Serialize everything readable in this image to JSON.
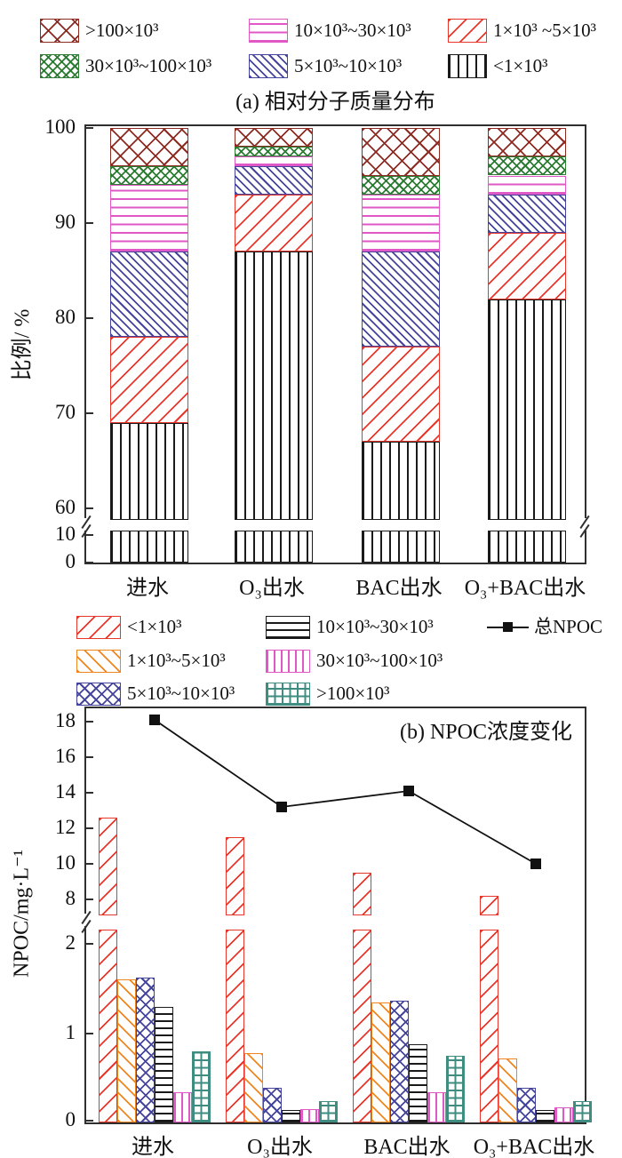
{
  "chart_data": [
    {
      "panel": "a",
      "type": "bar",
      "stacked": true,
      "title": "(a) 相对分子质量分布",
      "ylabel": "比例/ %",
      "categories": [
        "进水",
        "O₃出水",
        "BAC出水",
        "O₃+BAC出水"
      ],
      "y_axis": {
        "lower_ticks": [
          0,
          10
        ],
        "upper_ticks": [
          60,
          70,
          80,
          90,
          100
        ],
        "axis_break": [
          12,
          60
        ],
        "ylim": [
          0,
          100
        ]
      },
      "series": [
        {
          "name": "<1×10³",
          "pattern": "vertical",
          "color": "#1a1a1a",
          "values": [
            69,
            87,
            67,
            82
          ]
        },
        {
          "name": "1×10³ ~5×10³",
          "pattern": "diag-up",
          "color": "#e8372a",
          "values": [
            9,
            6,
            10,
            7
          ]
        },
        {
          "name": "5×10³~10×10³",
          "pattern": "diag-down",
          "color": "#45449c",
          "values": [
            9,
            3,
            10,
            4
          ]
        },
        {
          "name": "10×10³~30×10³",
          "pattern": "horizontal",
          "color": "#df58c5",
          "values": [
            7,
            1,
            6,
            2
          ]
        },
        {
          "name": "30×10³~100×10³",
          "pattern": "diamond-dense",
          "color": "#2c7d33",
          "values": [
            2,
            1,
            2,
            2
          ]
        },
        {
          "name": ">100×10³",
          "pattern": "diamond",
          "color": "#8d2b22",
          "values": [
            4,
            2,
            5,
            3
          ]
        }
      ],
      "legend_order": [
        [
          5,
          3,
          1
        ],
        [
          4,
          2,
          0
        ]
      ]
    },
    {
      "panel": "b",
      "type": "bar+line",
      "stacked": false,
      "title": "(b) NPOC浓度变化",
      "ylabel": "NPOC/mg·L⁻¹",
      "categories": [
        "进水",
        "O₃出水",
        "BAC出水",
        "O₃+BAC出水"
      ],
      "y_axis": {
        "lower_ticks": [
          0,
          1,
          2
        ],
        "upper_ticks": [
          8,
          10,
          12,
          14,
          16,
          18
        ],
        "axis_break": [
          2.2,
          7.1
        ],
        "ylim": [
          0,
          19
        ]
      },
      "series": [
        {
          "name": "<1×10³",
          "pattern": "diag-up",
          "color": "#e8372a",
          "values": [
            12.6,
            11.5,
            9.5,
            8.2
          ]
        },
        {
          "name": "1×10³~5×10³",
          "pattern": "diag-down",
          "color": "#f0861f",
          "values": [
            1.6,
            0.78,
            1.35,
            0.72
          ]
        },
        {
          "name": "5×10³~10×10³",
          "pattern": "diamond",
          "color": "#45449c",
          "values": [
            1.62,
            0.4,
            1.37,
            0.4
          ]
        },
        {
          "name": "10×10³~30×10³",
          "pattern": "horizontal",
          "color": "#1a1a1a",
          "values": [
            1.3,
            0.15,
            0.88,
            0.15
          ]
        },
        {
          "name": "30×10³~100×10³",
          "pattern": "vertical",
          "color": "#df58c5",
          "values": [
            0.35,
            0.16,
            0.35,
            0.18
          ]
        },
        {
          "name": ">100×10³",
          "pattern": "grid",
          "color": "#3f8d80",
          "values": [
            0.8,
            0.25,
            0.75,
            0.25
          ]
        }
      ],
      "line_series": {
        "name": "总NPOC",
        "color": "#111111",
        "marker": "square",
        "values": [
          18.1,
          13.2,
          14.1,
          10.0
        ]
      },
      "legend_order": [
        [
          0,
          3,
          "line"
        ],
        [
          1,
          4
        ],
        [
          2,
          5
        ]
      ]
    }
  ]
}
